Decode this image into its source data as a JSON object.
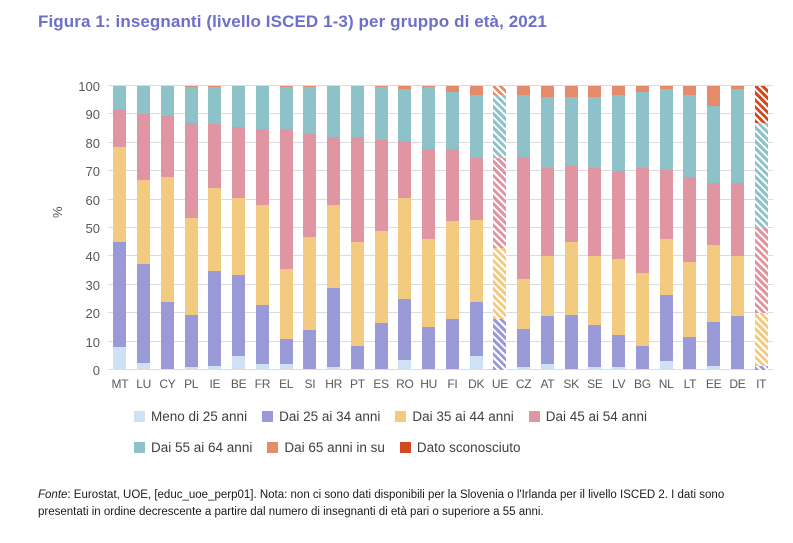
{
  "page": {
    "title": "Figura 1: insegnanti (livello ISCED 1-3) per gruppo di età, 2021"
  },
  "footer": {
    "source_label": "Fonte",
    "text": ": Eurostat, UOE, [educ_uoe_perp01]. Nota: non ci sono dati disponibili per la Slovenia o l'Irlanda per il livello ISCED 2. I dati sono presentati in ordine decrescente a partire dal numero di insegnanti di età pari o superiore a 55 anni."
  },
  "chart_data": {
    "type": "bar",
    "subtype": "stacked-100-percent",
    "title": "Figura 1: insegnanti (livello ISCED 1-3) per gruppo di età, 2021",
    "xlabel": "",
    "ylabel": "%",
    "ylim": [
      0,
      100
    ],
    "yticks": [
      0,
      10,
      20,
      30,
      40,
      50,
      60,
      70,
      80,
      90,
      100
    ],
    "grid": true,
    "legend_position": "bottom",
    "series": [
      {
        "name": "Meno di 25 anni",
        "color": "#cfe1f4"
      },
      {
        "name": "Dai 25 ai 34 anni",
        "color": "#9b9ad9"
      },
      {
        "name": "Dai 35 ai 44 anni",
        "color": "#f2cb81"
      },
      {
        "name": "Dai 45 ai 54 anni",
        "color": "#e095a3"
      },
      {
        "name": "Dai 55 ai 64 anni",
        "color": "#8dc2c9"
      },
      {
        "name": "Dai 65 anni in su",
        "color": "#e68a6c"
      },
      {
        "name": "Dato sconosciuto",
        "color": "#d04a22"
      }
    ],
    "categories": [
      "MT",
      "LU",
      "CY",
      "PL",
      "IE",
      "BE",
      "FR",
      "EL",
      "SI",
      "HR",
      "PT",
      "ES",
      "RO",
      "HU",
      "FI",
      "DK",
      "UE",
      "CZ",
      "AT",
      "SK",
      "SE",
      "LV",
      "BG",
      "NL",
      "LT",
      "EE",
      "DE",
      "IT"
    ],
    "hatched_categories": [
      "UE",
      "IT"
    ],
    "values": [
      [
        8,
        37,
        33.5,
        13.5,
        8,
        0,
        0
      ],
      [
        2.5,
        35,
        29.5,
        23,
        10,
        0,
        0
      ],
      [
        0.5,
        23.5,
        44,
        21.5,
        10.5,
        0,
        0
      ],
      [
        1,
        18.5,
        34,
        33.5,
        12.5,
        0.5,
        0
      ],
      [
        1.5,
        33.5,
        29,
        22.5,
        13,
        0.5,
        0
      ],
      [
        5,
        28.5,
        27,
        25,
        14.5,
        0,
        0
      ],
      [
        2,
        21,
        35,
        27,
        15,
        0,
        0
      ],
      [
        2,
        9,
        24.5,
        49.5,
        14.5,
        0.5,
        0
      ],
      [
        0.5,
        13.5,
        33,
        36,
        16.5,
        0.5,
        0
      ],
      [
        1,
        28,
        29,
        24,
        18,
        0,
        0
      ],
      [
        0.5,
        8,
        36.5,
        37,
        18,
        0,
        0
      ],
      [
        0.5,
        16,
        32.5,
        32,
        18.5,
        0.5,
        0
      ],
      [
        3.5,
        21.5,
        35.5,
        20,
        18.5,
        1,
        0
      ],
      [
        0.5,
        14.5,
        31,
        32,
        21.5,
        0.5,
        0
      ],
      [
        0.5,
        17.5,
        34.5,
        25.5,
        20,
        2,
        0
      ],
      [
        5,
        19,
        29,
        21.5,
        22.5,
        3,
        0
      ],
      [
        0,
        18,
        25,
        31.5,
        22.5,
        3,
        0
      ],
      [
        1,
        13.5,
        17.5,
        43,
        22,
        3,
        0
      ],
      [
        2,
        17,
        21,
        31,
        25,
        4,
        0
      ],
      [
        0.5,
        19,
        25.5,
        27,
        24,
        4,
        0
      ],
      [
        1,
        15,
        24,
        31,
        25,
        4,
        0
      ],
      [
        1,
        11.5,
        26.5,
        31,
        27,
        3,
        0
      ],
      [
        0.5,
        8,
        25.5,
        37,
        27,
        2,
        0
      ],
      [
        3,
        23.5,
        19.5,
        24.5,
        28.5,
        1,
        0
      ],
      [
        0.5,
        11,
        26.5,
        30,
        29,
        3,
        0
      ],
      [
        1.5,
        15.5,
        27,
        22,
        27,
        7,
        0
      ],
      [
        0.5,
        18.5,
        21,
        26,
        33,
        1,
        0
      ],
      [
        0,
        1.5,
        18.5,
        30,
        37,
        0,
        13
      ]
    ]
  }
}
